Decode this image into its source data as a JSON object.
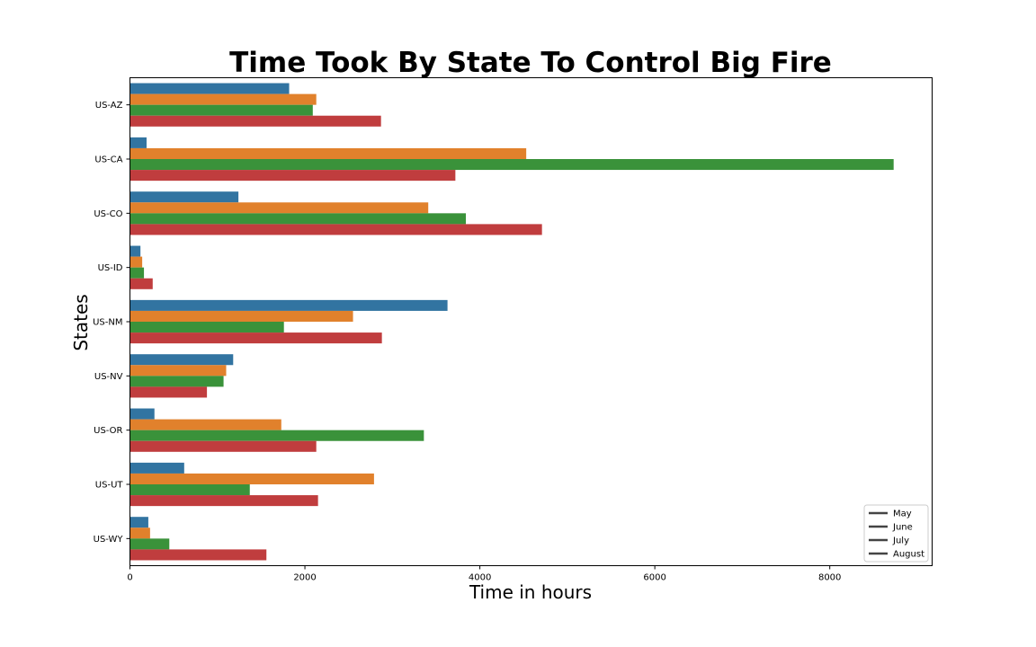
{
  "chart_data": {
    "type": "bar",
    "orientation": "horizontal",
    "title": "Time Took By State To Control Big Fire",
    "xlabel": "Time in hours",
    "ylabel": "States",
    "categories": [
      "US-AZ",
      "US-CA",
      "US-CO",
      "US-ID",
      "US-NM",
      "US-NV",
      "US-OR",
      "US-UT",
      "US-WY"
    ],
    "xlim": [
      0,
      9170
    ],
    "xticks": [
      0,
      2000,
      4000,
      6000,
      8000
    ],
    "legend_position": "lower-right",
    "grid": false,
    "series": [
      {
        "name": "May",
        "color": "#3274a1",
        "values": [
          1820,
          190,
          1240,
          120,
          3630,
          1180,
          280,
          620,
          210
        ]
      },
      {
        "name": "June",
        "color": "#e1812c",
        "values": [
          2130,
          4530,
          3410,
          140,
          2550,
          1100,
          1730,
          2790,
          230
        ]
      },
      {
        "name": "July",
        "color": "#3a923a",
        "values": [
          2090,
          8730,
          3840,
          160,
          1760,
          1070,
          3360,
          1370,
          450
        ]
      },
      {
        "name": "August",
        "color": "#c03d3e",
        "values": [
          2870,
          3720,
          4710,
          260,
          2880,
          880,
          2130,
          2150,
          1560
        ]
      }
    ]
  }
}
